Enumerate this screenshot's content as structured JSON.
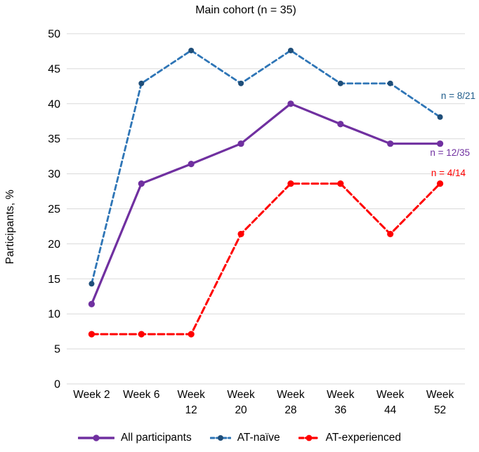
{
  "page": {
    "background": "#ffffff"
  },
  "chart_data": {
    "type": "line",
    "title": "Main cohort (n = 35)",
    "xlabel": "",
    "ylabel": "Participants, %",
    "ylim": [
      0,
      50
    ],
    "yticks": [
      0,
      5,
      10,
      15,
      20,
      25,
      30,
      35,
      40,
      45,
      50
    ],
    "grid": "horizontal",
    "gridline_color": "#D9D9D9",
    "legend_position": "bottom",
    "categories": [
      "Week 2",
      "Week 6",
      "Week 12",
      "Week 20",
      "Week 28",
      "Week 36",
      "Week 44",
      "Week 52"
    ],
    "series": [
      {
        "name": "All participants",
        "style": "solid",
        "color": "#7030A0",
        "marker_color": "#7030A0",
        "values": [
          11.4,
          28.6,
          31.4,
          34.3,
          40.0,
          37.1,
          34.3,
          34.3
        ],
        "annotation": "n = 12/35",
        "annotation_color": "#7030A0"
      },
      {
        "name": "AT-naïve",
        "style": "dashed",
        "color": "#2E75B6",
        "marker_color": "#1F4E79",
        "values": [
          14.3,
          42.9,
          47.6,
          42.9,
          47.6,
          42.9,
          42.9,
          38.1
        ],
        "annotation": "n = 8/21",
        "annotation_color": "#1F5C8B"
      },
      {
        "name": "AT-experienced",
        "style": "dashed",
        "color": "#FF0000",
        "marker_color": "#FF0000",
        "values": [
          7.1,
          7.1,
          7.1,
          21.4,
          28.6,
          28.6,
          21.4,
          28.6
        ],
        "annotation": "n = 4/14",
        "annotation_color": "#FF0000"
      }
    ]
  }
}
